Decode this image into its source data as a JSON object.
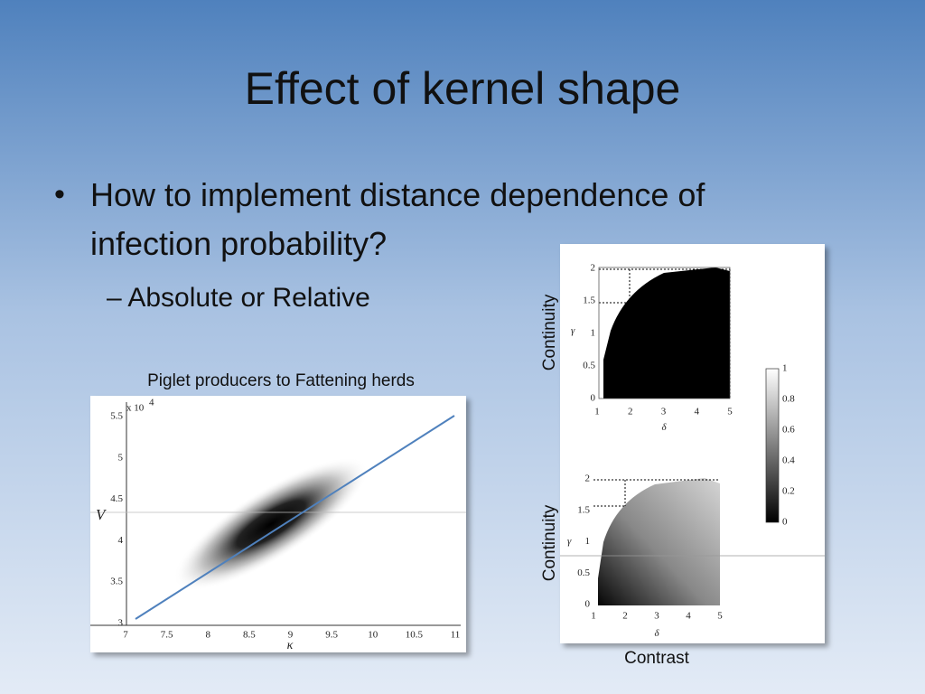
{
  "header": {
    "title": "Effect of kernel shape"
  },
  "bullets": [
    {
      "text": "How to implement distance dependence of",
      "continuation": "infection probability?",
      "sub": "– Absolute or Relative"
    }
  ],
  "left_figure": {
    "caption": "Piglet producers to Fattening herds",
    "exponent_label": "x 10",
    "exponent": "4",
    "ylabel": "V",
    "xlabel": "κ",
    "yticks": [
      "5.5",
      "5",
      "4.5",
      "4",
      "3.5",
      "3"
    ],
    "xticks": [
      "7",
      "7.5",
      "8",
      "8.5",
      "9",
      "9.5",
      "10",
      "10.5",
      "11"
    ]
  },
  "right_figure": {
    "top": {
      "side_label": "Continuity",
      "ylabel": "γ",
      "xlabel": "δ",
      "yticks": [
        "2",
        "1.5",
        "1",
        "0.5",
        "0"
      ],
      "xticks": [
        "1",
        "2",
        "3",
        "4",
        "5"
      ]
    },
    "bottom": {
      "side_label": "Continuity",
      "ylabel": "γ",
      "xlabel": "δ",
      "yticks": [
        "2",
        "1.5",
        "1",
        "0.5",
        "0"
      ],
      "xticks": [
        "1",
        "2",
        "3",
        "4",
        "5"
      ]
    },
    "colorbar_ticks": [
      "1",
      "0.8",
      "0.6",
      "0.4",
      "0.2",
      "0"
    ],
    "caption": "Contrast"
  }
}
